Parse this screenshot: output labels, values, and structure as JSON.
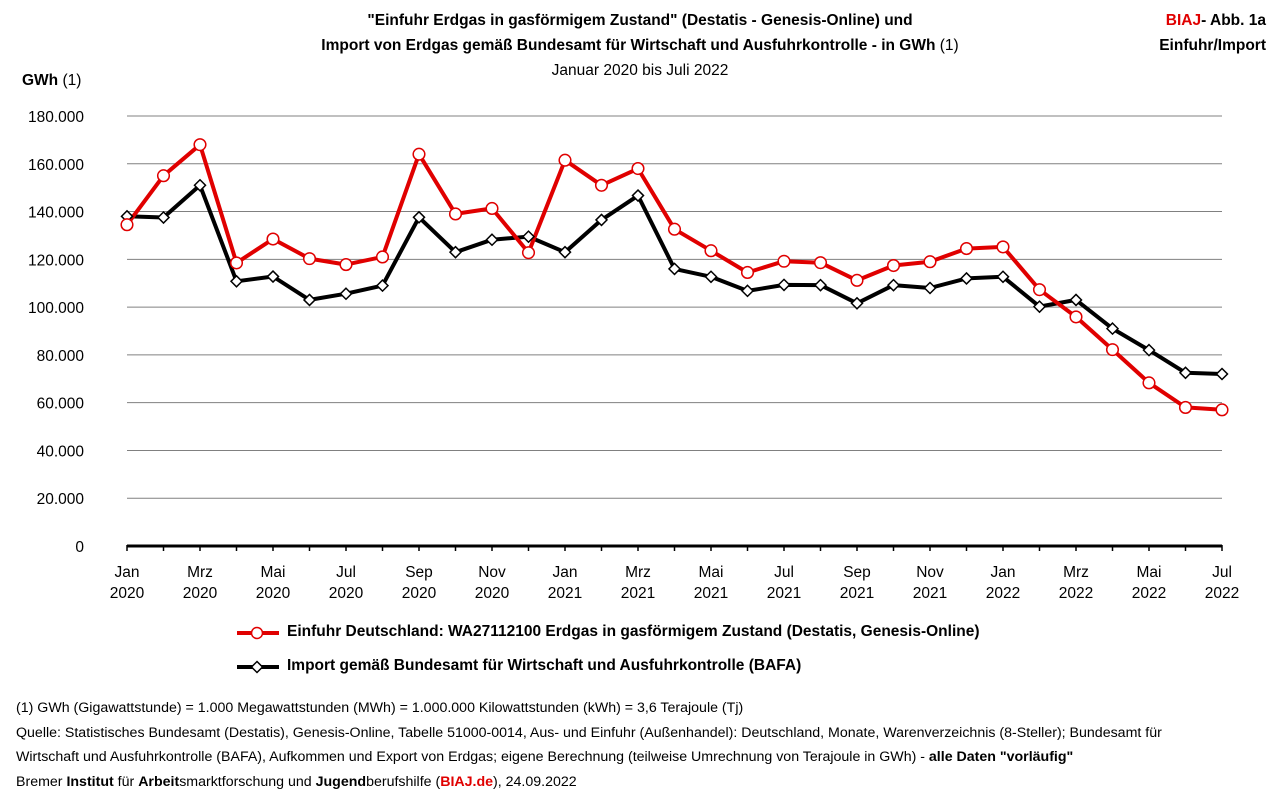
{
  "header": {
    "title_line1": "\"Einfuhr Erdgas in gasförmigem Zustand\" (Destatis - Genesis-Online) und",
    "title_line2_bold": "Import von Erdgas gemäß Bundesamt für Wirtschaft und Ausfuhrkontrolle  - in GWh",
    "title_line2_note": " (1)",
    "subtitle": "Januar 2020 bis Juli 2022",
    "corner_brand": "BIAJ",
    "corner_line1_rest": "- Abb. 1a",
    "corner_line2": "Einfuhr/Import",
    "unit_label_bold": "GWh",
    "unit_label_note": " (1)"
  },
  "colors": {
    "series1": "#e00000",
    "series2": "#000000",
    "grid": "#808080",
    "brand": "#e00000"
  },
  "chart_data": {
    "type": "line",
    "title": "\"Einfuhr Erdgas in gasförmigem Zustand\" (Destatis - Genesis-Online) und Import von Erdgas gemäß Bundesamt für Wirtschaft und Ausfuhrkontrolle - in GWh (1)",
    "subtitle": "Januar 2020 bis Juli 2022",
    "ylabel": "GWh (1)",
    "ylim": [
      0,
      180000
    ],
    "yticks": [
      0,
      20000,
      40000,
      60000,
      80000,
      100000,
      120000,
      140000,
      160000,
      180000
    ],
    "ytick_labels": [
      "0",
      "20.000",
      "40.000",
      "60.000",
      "80.000",
      "100.000",
      "120.000",
      "140.000",
      "160.000",
      "180.000"
    ],
    "grid": true,
    "legend_position": "bottom",
    "x": [
      "2020-01",
      "2020-02",
      "2020-03",
      "2020-04",
      "2020-05",
      "2020-06",
      "2020-07",
      "2020-08",
      "2020-09",
      "2020-10",
      "2020-11",
      "2020-12",
      "2021-01",
      "2021-02",
      "2021-03",
      "2021-04",
      "2021-05",
      "2021-06",
      "2021-07",
      "2021-08",
      "2021-09",
      "2021-10",
      "2021-11",
      "2021-12",
      "2022-01",
      "2022-02",
      "2022-03",
      "2022-04",
      "2022-05",
      "2022-06",
      "2022-07"
    ],
    "xtick_labels": [
      {
        "index": 0,
        "month": "Jan",
        "year": "2020"
      },
      {
        "index": 2,
        "month": "Mrz",
        "year": "2020"
      },
      {
        "index": 4,
        "month": "Mai",
        "year": "2020"
      },
      {
        "index": 6,
        "month": "Jul",
        "year": "2020"
      },
      {
        "index": 8,
        "month": "Sep",
        "year": "2020"
      },
      {
        "index": 10,
        "month": "Nov",
        "year": "2020"
      },
      {
        "index": 12,
        "month": "Jan",
        "year": "2021"
      },
      {
        "index": 14,
        "month": "Mrz",
        "year": "2021"
      },
      {
        "index": 16,
        "month": "Mai",
        "year": "2021"
      },
      {
        "index": 18,
        "month": "Jul",
        "year": "2021"
      },
      {
        "index": 20,
        "month": "Sep",
        "year": "2021"
      },
      {
        "index": 22,
        "month": "Nov",
        "year": "2021"
      },
      {
        "index": 24,
        "month": "Jan",
        "year": "2022"
      },
      {
        "index": 26,
        "month": "Mrz",
        "year": "2022"
      },
      {
        "index": 28,
        "month": "Mai",
        "year": "2022"
      },
      {
        "index": 30,
        "month": "Jul",
        "year": "2022"
      }
    ],
    "series": [
      {
        "name": "Einfuhr Deutschland:  WA27112100 Erdgas in gasförmigem Zustand (Destatis, Genesis-Online)",
        "color": "#e00000",
        "marker": "circle",
        "values": [
          134500,
          155000,
          168000,
          118500,
          128500,
          120300,
          117800,
          121000,
          164000,
          139000,
          141300,
          122800,
          161500,
          151000,
          158000,
          132600,
          123600,
          114500,
          119200,
          118600,
          111200,
          117400,
          119000,
          124500,
          125200,
          107300,
          95900,
          82200,
          68300,
          58000,
          57000
        ]
      },
      {
        "name": "Import gemäß Bundesamt für Wirtschaft und Ausfuhrkontrolle (BAFA)",
        "color": "#000000",
        "marker": "diamond",
        "values": [
          138000,
          137500,
          151000,
          110800,
          112800,
          103000,
          105600,
          109000,
          137600,
          123000,
          128200,
          129500,
          123000,
          136500,
          146700,
          116000,
          112700,
          106800,
          109300,
          109200,
          101600,
          109200,
          108000,
          112000,
          112700,
          100200,
          103000,
          91000,
          82000,
          72500,
          72000
        ]
      }
    ]
  },
  "legend": {
    "item1": "Einfuhr Deutschland:  WA27112100 Erdgas in gasförmigem Zustand (Destatis, Genesis-Online)",
    "item2": "Import gemäß Bundesamt für Wirtschaft und Ausfuhrkontrolle (BAFA)"
  },
  "footnotes": {
    "line1": "(1) GWh (Gigawattstunde) = 1.000 Megawattstunden (MWh)  = 1.000.000 Kilowattstunden (kWh) = 3,6 Terajoule (Tj)",
    "line2": "Quelle: Statistisches Bundesamt (Destatis), Genesis-Online, Tabelle 51000-0014, Aus- und Einfuhr (Außenhandel): Deutschland, Monate, Warenverzeichnis (8-Steller); Bundesamt für",
    "line3_start": "Wirtschaft und Ausfuhrkontrolle (BAFA), Aufkommen und Export von Erdgas; eigene Berechnung (teilweise Umrechnung von Terajoule in GWh) - ",
    "line3_bold": "alle Daten \"vorläufig\"",
    "line4_w1": "Bremer ",
    "line4_b1": "Institut",
    "line4_w2": " für ",
    "line4_b2": "Arbeit",
    "line4_w3": "smarktforschung und ",
    "line4_b3": "Jugend",
    "line4_w4": "berufshilfe (",
    "line4_link": "BIAJ.de",
    "line4_w5": "), 24.09.2022"
  }
}
